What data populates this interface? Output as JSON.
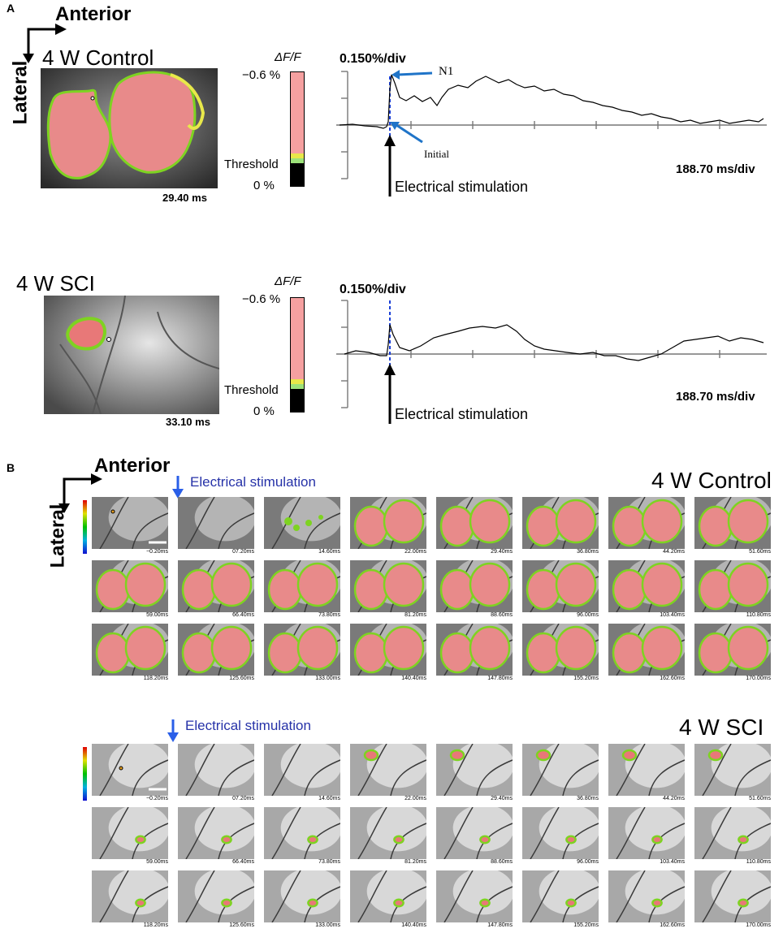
{
  "panels": {
    "a": {
      "letter": "A"
    },
    "b": {
      "letter": "B"
    }
  },
  "orientation": {
    "anterior": "Anterior",
    "lateral": "Lateral"
  },
  "panel_a": {
    "control": {
      "title": "4 W Control",
      "time": "29.40 ms",
      "colorbar": {
        "label": "ΔF/F",
        "top": "−0.6  %",
        "threshold": "Threshold",
        "bottom": "0 %"
      },
      "trace": {
        "scale": "0.150%/div",
        "timediv": "188.70 ms/div",
        "stim": "Electrical stimulation",
        "n1": "N1",
        "initial": "Initial"
      }
    },
    "sci": {
      "title": "4 W SCI",
      "time": "33.10 ms",
      "colorbar": {
        "label": "ΔF/F",
        "top": "−0.6  %",
        "threshold": "Threshold",
        "bottom": "0 %"
      },
      "trace": {
        "scale": "0.150%/div",
        "timediv": "188.70 ms/div",
        "stim": "Electrical stimulation"
      }
    }
  },
  "panel_b": {
    "control_title": "4 W Control",
    "sci_title": "4 W SCI",
    "stim_label": "Electrical stimulation",
    "frame_times": [
      [
        "−0.20ms",
        "07.20ms",
        "14.60ms",
        "22.00ms",
        "29.40ms",
        "36.80ms",
        "44.20ms",
        "51.60ms"
      ],
      [
        "59.00ms",
        "66.40ms",
        "73.80ms",
        "81.20ms",
        "88.60ms",
        "96.00ms",
        "103.40ms",
        "110.80ms"
      ],
      [
        "118.20ms",
        "125.60ms",
        "133.00ms",
        "140.40ms",
        "147.80ms",
        "155.20ms",
        "162.60ms",
        "170.00ms"
      ]
    ]
  },
  "colors": {
    "response": "#e87878",
    "edge_green": "#7ed321",
    "edge_yellow": "#e8e84a",
    "stim_marker": "#1a3fd6",
    "annotation_blue": "#1f74c8"
  }
}
